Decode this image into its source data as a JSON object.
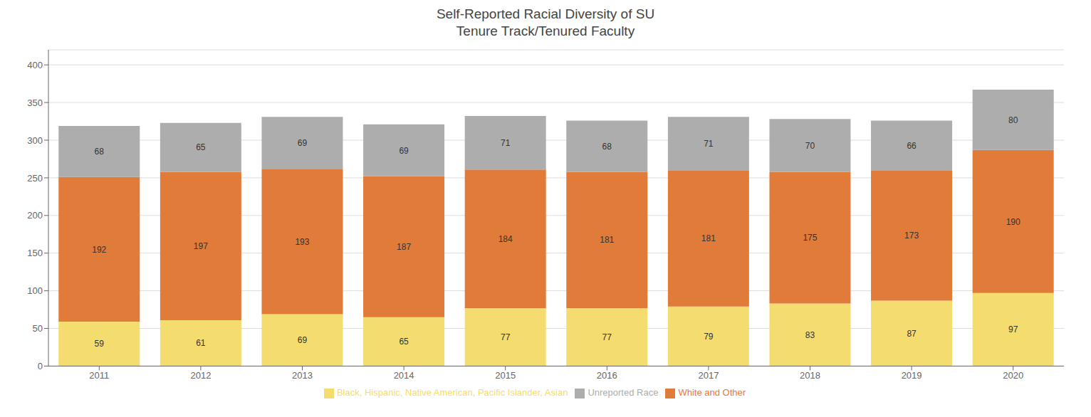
{
  "chart_data": {
    "type": "bar",
    "title": "Self-Reported Racial Diversity of SU\nTenure Track/Tenured Faculty",
    "categories": [
      "2011",
      "2012",
      "2013",
      "2014",
      "2015",
      "2016",
      "2017",
      "2018",
      "2019",
      "2020"
    ],
    "series": [
      {
        "name": "Black, Hispanic, Native American, Pacific Islander, Asian",
        "color": "#F5DC6E",
        "values": [
          59,
          61,
          69,
          65,
          77,
          77,
          79,
          83,
          87,
          97
        ]
      },
      {
        "name": "White and Other",
        "color": "#E07B39",
        "values": [
          192,
          197,
          193,
          187,
          184,
          181,
          181,
          175,
          173,
          190
        ]
      },
      {
        "name": "Unreported Race",
        "color": "#ADADAD",
        "values": [
          68,
          65,
          69,
          69,
          71,
          68,
          71,
          70,
          66,
          80
        ]
      }
    ],
    "ylim": [
      0,
      420
    ],
    "yticks": [
      0,
      50,
      100,
      150,
      200,
      250,
      300,
      350,
      400
    ],
    "grid": true,
    "stacked": true,
    "data_labels": true,
    "legend": "bottom"
  }
}
